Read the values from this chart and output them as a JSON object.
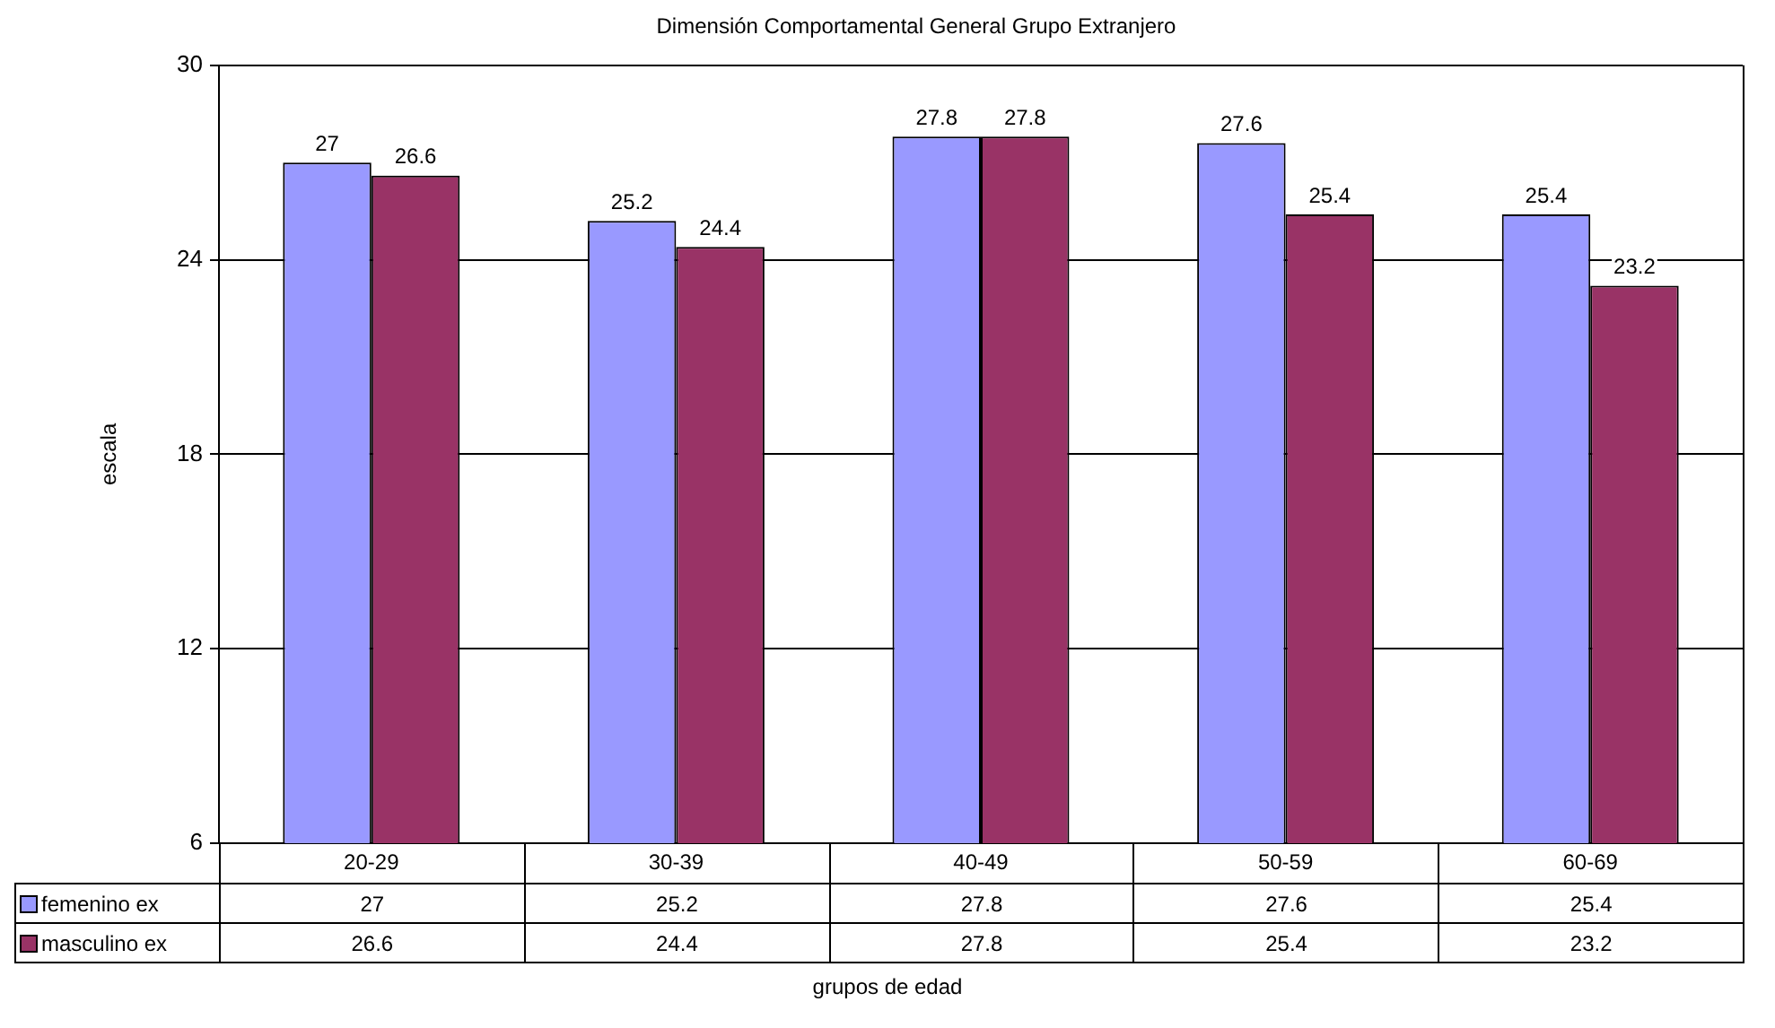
{
  "chart_data": {
    "type": "bar",
    "title": "Dimensión Comportamental General Grupo Extranjero",
    "xlabel": "grupos de edad",
    "ylabel": "escala",
    "categories": [
      "20-29",
      "30-39",
      "40-49",
      "50-59",
      "60-69"
    ],
    "series": [
      {
        "name": "femenino ex",
        "color": "#9999ff",
        "values": [
          27,
          25.2,
          27.8,
          27.6,
          25.4
        ]
      },
      {
        "name": "masculino ex",
        "color": "#993366",
        "values": [
          26.6,
          24.4,
          27.8,
          25.4,
          23.2
        ]
      }
    ],
    "ylim": [
      6,
      30
    ],
    "yticks": [
      6,
      12,
      18,
      24,
      30
    ],
    "grid": "y",
    "legend": "bottom",
    "data_labels": true,
    "annotations": [
      "27",
      "25.2",
      "27.8",
      "27.6",
      "25.4",
      "26.6",
      "24.4",
      "27.8",
      "25.4",
      "23.2"
    ]
  }
}
